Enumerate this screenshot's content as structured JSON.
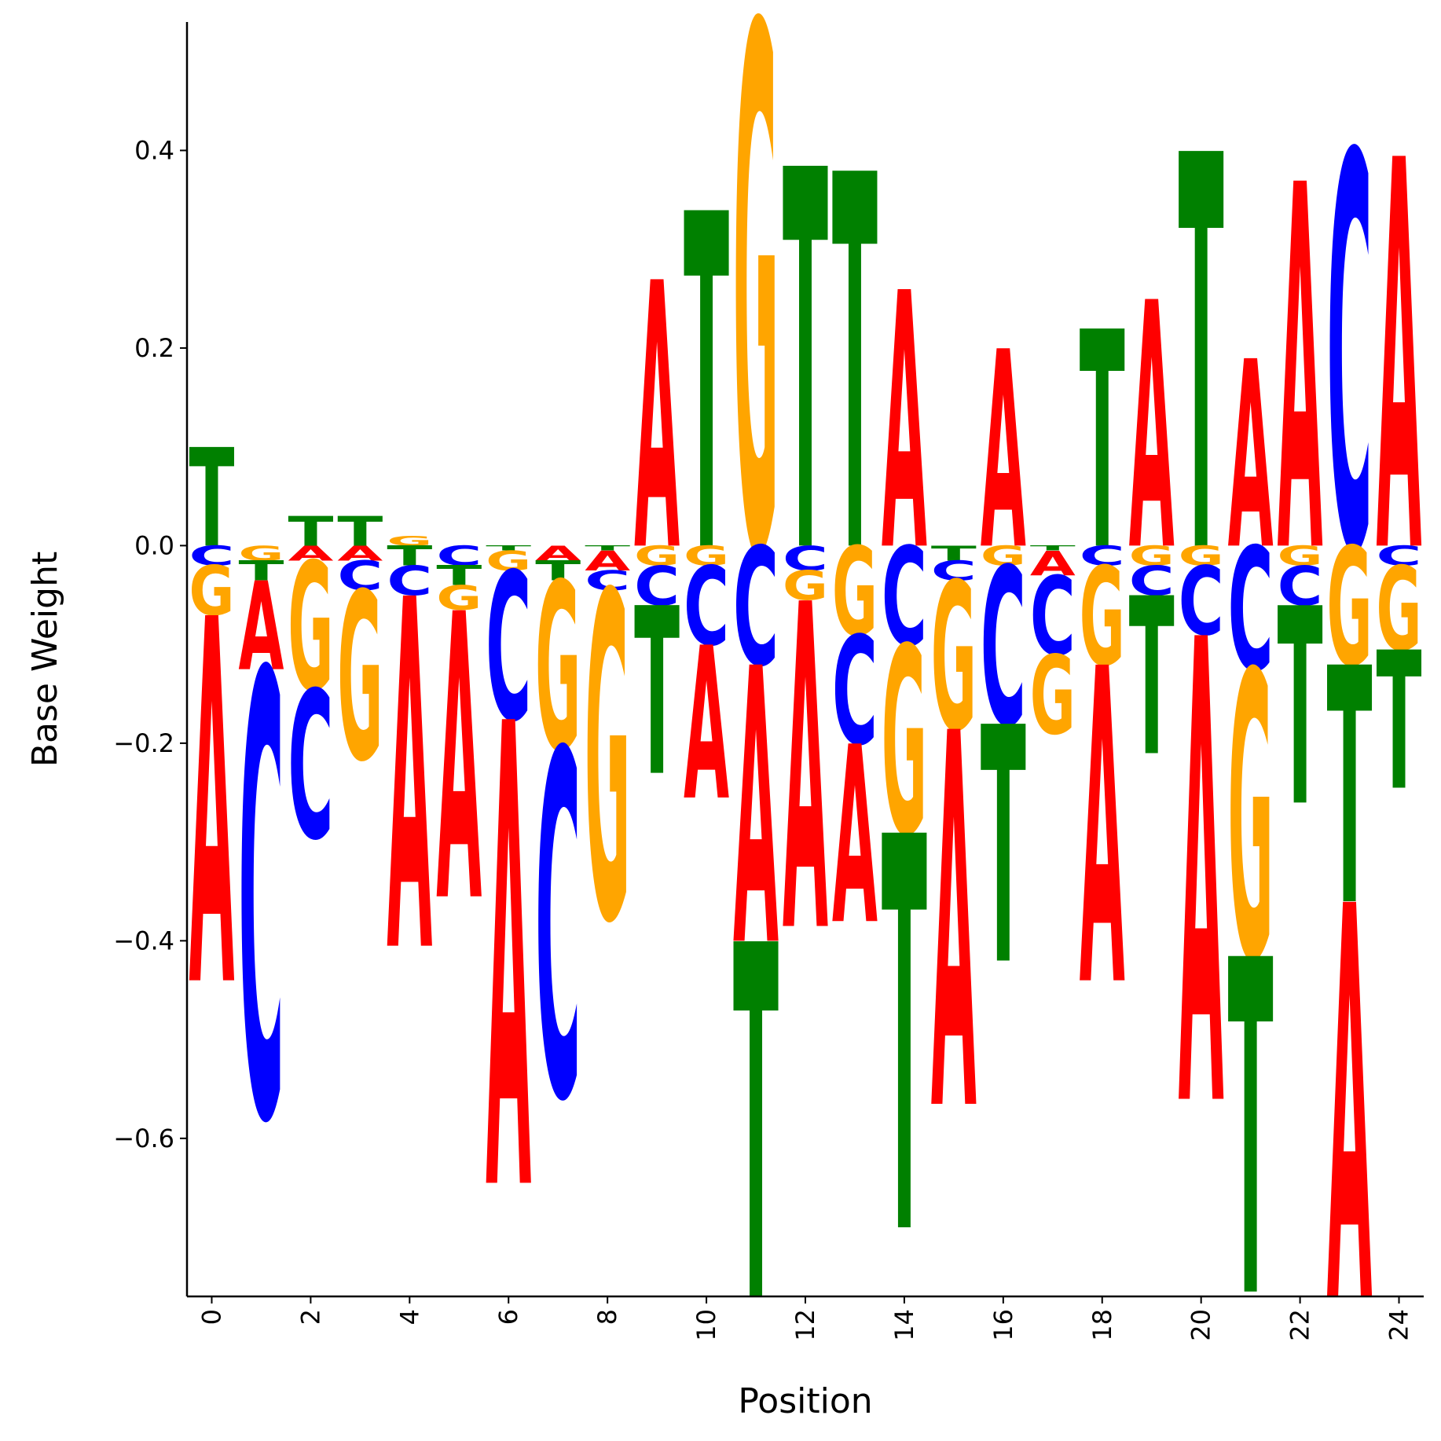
{
  "chart_data": {
    "type": "sequence-logo",
    "xlabel": "Position",
    "ylabel": "Base Weight",
    "xlim": [
      -0.5,
      24.5
    ],
    "ylim": [
      -0.76,
      0.53
    ],
    "xticks": [
      0,
      2,
      4,
      6,
      8,
      10,
      12,
      14,
      16,
      18,
      20,
      22,
      24
    ],
    "yticks": [
      -0.6,
      -0.4,
      -0.2,
      0.0,
      0.2,
      0.4
    ],
    "ytick_labels": [
      "−0.6",
      "−0.4",
      "−0.2",
      "0.0",
      "0.2",
      "0.4"
    ],
    "grid": false,
    "colors": {
      "A": "#ff0000",
      "C": "#0000ff",
      "G": "#ffa500",
      "T": "#008000"
    },
    "weights": [
      {
        "A": -0.37,
        "C": -0.02,
        "G": -0.05,
        "T": 0.1
      },
      {
        "A": -0.09,
        "C": -0.45,
        "G": -0.015,
        "T": -0.02
      },
      {
        "A": -0.015,
        "C": -0.15,
        "G": -0.13,
        "T": 0.03
      },
      {
        "A": -0.015,
        "C": -0.03,
        "G": -0.17,
        "T": 0.03
      },
      {
        "A": -0.355,
        "C": -0.03,
        "G": 0.01,
        "T": -0.02
      },
      {
        "A": -0.29,
        "C": -0.02,
        "G": -0.025,
        "T": -0.02
      },
      {
        "A": -0.47,
        "C": -0.15,
        "G": -0.02,
        "T": -0.005
      },
      {
        "A": -0.015,
        "C": -0.35,
        "G": -0.17,
        "T": -0.02
      },
      {
        "A": -0.02,
        "C": -0.02,
        "G": -0.33,
        "T": -0.005
      },
      {
        "A": 0.27,
        "C": -0.04,
        "G": -0.02,
        "T": -0.17
      },
      {
        "A": -0.155,
        "C": -0.08,
        "G": -0.02,
        "T": 0.34
      },
      {
        "A": -0.28,
        "C": -0.12,
        "G": 0.53,
        "T": -0.36
      },
      {
        "A": -0.33,
        "C": -0.025,
        "G": -0.03,
        "T": 0.385
      },
      {
        "A": -0.18,
        "C": -0.11,
        "G": -0.09,
        "T": 0.38
      },
      {
        "A": 0.26,
        "C": -0.1,
        "G": -0.19,
        "T": -0.4
      },
      {
        "A": -0.38,
        "C": -0.02,
        "G": -0.15,
        "T": -0.015
      },
      {
        "A": 0.2,
        "C": -0.16,
        "G": -0.02,
        "T": -0.24
      },
      {
        "A": -0.025,
        "C": -0.08,
        "G": -0.08,
        "T": -0.005
      },
      {
        "A": -0.32,
        "C": -0.02,
        "G": -0.1,
        "T": 0.22
      },
      {
        "A": 0.25,
        "C": -0.03,
        "G": -0.02,
        "T": -0.16
      },
      {
        "A": -0.47,
        "C": -0.07,
        "G": -0.02,
        "T": 0.4
      },
      {
        "A": 0.19,
        "C": -0.125,
        "G": -0.29,
        "T": -0.34
      },
      {
        "A": 0.37,
        "C": -0.04,
        "G": -0.02,
        "T": -0.2
      },
      {
        "A": -0.4,
        "C": 0.4,
        "G": -0.12,
        "T": -0.24
      },
      {
        "A": 0.395,
        "C": -0.02,
        "G": -0.085,
        "T": -0.14
      }
    ]
  }
}
